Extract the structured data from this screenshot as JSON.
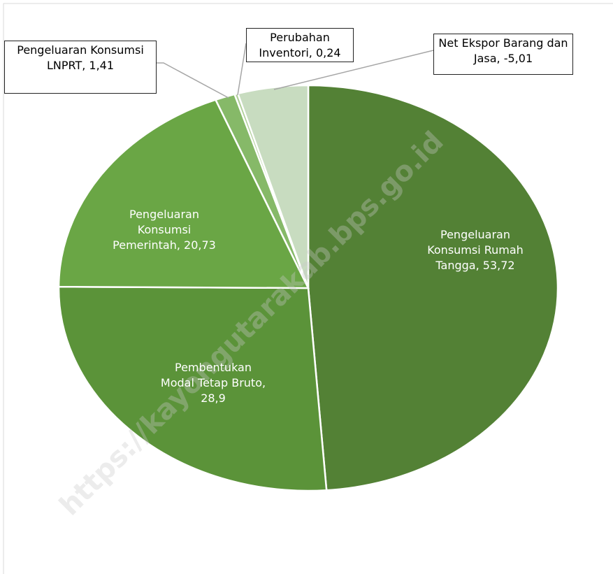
{
  "chart_data": {
    "type": "pie",
    "categories": [
      "Pengeluaran Konsumsi Rumah Tangga",
      "Pembentukan Modal Tetap Bruto",
      "Pengeluaran Konsumsi Pemerintah",
      "Pengeluaran Konsumsi LNPRT",
      "Perubahan Inventori",
      "Net Ekspor Barang dan Jasa"
    ],
    "values": [
      53.72,
      28.9,
      20.73,
      1.41,
      0.24,
      -5.01
    ],
    "value_labels": [
      "53,72",
      "28,9",
      "20,73",
      "1,41",
      "0,24",
      "-5,01"
    ],
    "colors": [
      "#538135",
      "#5b9339",
      "#6aa645",
      "#86b968",
      "#b0cf99",
      "#c8dcc0"
    ],
    "watermark": "https://kayongutarakab.bps.go.id"
  }
}
